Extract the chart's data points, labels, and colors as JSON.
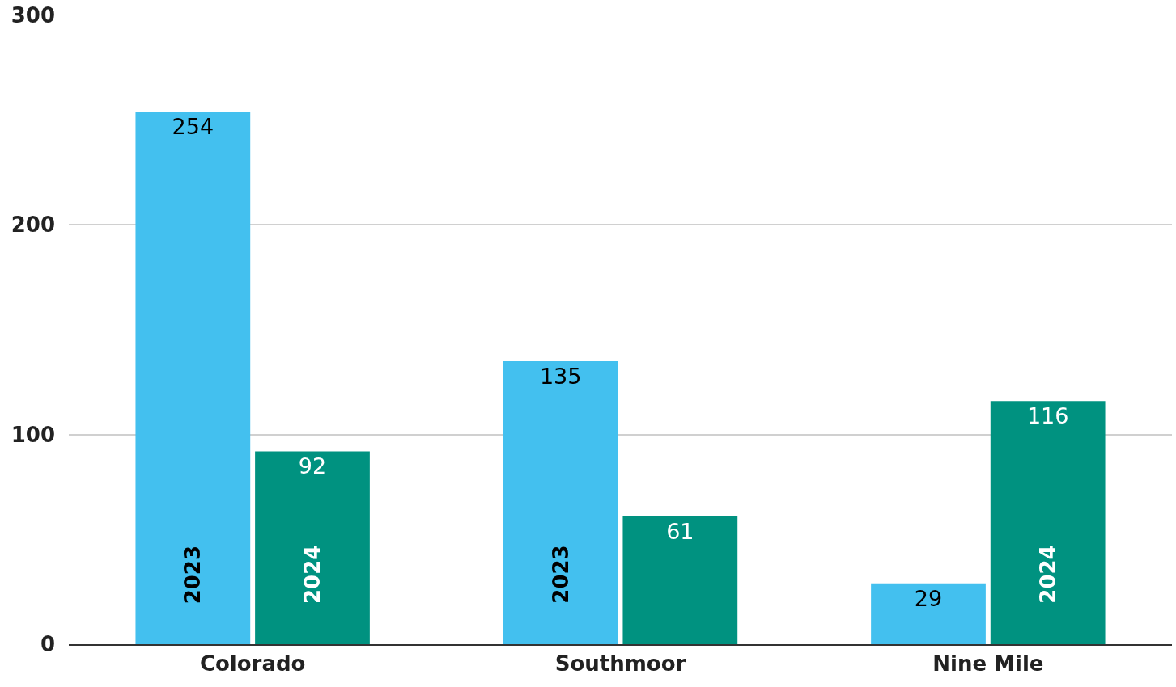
{
  "chart_data": {
    "type": "bar",
    "categories": [
      "Colorado",
      "Southmoor",
      "Nine Mile"
    ],
    "series": [
      {
        "name": "2023",
        "color": "#43c0ef",
        "values": [
          254,
          135,
          29
        ]
      },
      {
        "name": "2024",
        "color": "#009280",
        "values": [
          92,
          61,
          116
        ]
      }
    ],
    "ylim": [
      0,
      300
    ],
    "yticks": [
      0,
      100,
      200,
      300
    ],
    "grid": "y",
    "data_labels": true,
    "legend": false
  }
}
